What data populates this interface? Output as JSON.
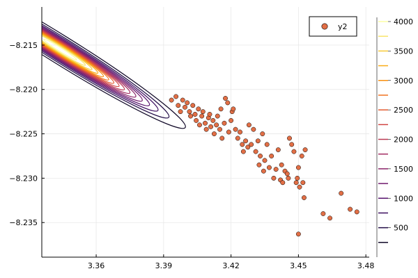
{
  "chart_data": {
    "type": "scatter",
    "title": "",
    "xlabel": "",
    "ylabel": "",
    "xlim": [
      3.3358,
      3.4815
    ],
    "ylim": [
      -8.2389,
      -8.2107
    ],
    "x_ticks": [
      3.36,
      3.39,
      3.42,
      3.45,
      3.48
    ],
    "x_tick_labels": [
      "3.36",
      "3.39",
      "3.42",
      "3.45",
      "3.48"
    ],
    "y_ticks": [
      -8.215,
      -8.22,
      -8.225,
      -8.23,
      -8.235
    ],
    "y_tick_labels": [
      "−8.215",
      "−8.220",
      "−8.225",
      "−8.230",
      "−8.235"
    ],
    "grid": true,
    "legend": {
      "position": "top-right",
      "entries": [
        "y2"
      ]
    },
    "colors": {
      "scatter": "#e26f46",
      "edge": "#000000",
      "grid": "#e8e8e8"
    },
    "series": [
      {
        "name": "y2",
        "type": "scatter",
        "points": [
          [
            3.3935,
            -8.2212
          ],
          [
            3.3955,
            -8.2208
          ],
          [
            3.3965,
            -8.2218
          ],
          [
            3.3975,
            -8.2225
          ],
          [
            3.3985,
            -8.2212
          ],
          [
            3.3995,
            -8.222
          ],
          [
            3.4005,
            -8.2215
          ],
          [
            3.4015,
            -8.2225
          ],
          [
            3.402,
            -8.223
          ],
          [
            3.403,
            -8.2218
          ],
          [
            3.404,
            -8.2228
          ],
          [
            3.4045,
            -8.2235
          ],
          [
            3.4055,
            -8.2222
          ],
          [
            3.406,
            -8.224
          ],
          [
            3.407,
            -8.223
          ],
          [
            3.4075,
            -8.2225
          ],
          [
            3.4085,
            -8.2238
          ],
          [
            3.409,
            -8.2245
          ],
          [
            3.41,
            -8.2232
          ],
          [
            3.4105,
            -8.2228
          ],
          [
            3.411,
            -8.2242
          ],
          [
            3.412,
            -8.2235
          ],
          [
            3.4125,
            -8.225
          ],
          [
            3.4135,
            -8.224
          ],
          [
            3.414,
            -8.223
          ],
          [
            3.415,
            -8.2245
          ],
          [
            3.4155,
            -8.2222
          ],
          [
            3.416,
            -8.2255
          ],
          [
            3.417,
            -8.2238
          ],
          [
            3.4175,
            -8.221
          ],
          [
            3.4185,
            -8.2215
          ],
          [
            3.419,
            -8.2248
          ],
          [
            3.42,
            -8.2235
          ],
          [
            3.4205,
            -8.2225
          ],
          [
            3.421,
            -8.2222
          ],
          [
            3.422,
            -8.2245
          ],
          [
            3.423,
            -8.2255
          ],
          [
            3.424,
            -8.2248
          ],
          [
            3.425,
            -8.2262
          ],
          [
            3.4255,
            -8.227
          ],
          [
            3.4265,
            -8.2258
          ],
          [
            3.4275,
            -8.2265
          ],
          [
            3.428,
            -8.224
          ],
          [
            3.429,
            -8.2262
          ],
          [
            3.43,
            -8.2245
          ],
          [
            3.431,
            -8.227
          ],
          [
            3.432,
            -8.2258
          ],
          [
            3.4325,
            -8.2285
          ],
          [
            3.433,
            -8.2275
          ],
          [
            3.434,
            -8.225
          ],
          [
            3.4345,
            -8.2292
          ],
          [
            3.435,
            -8.228
          ],
          [
            3.436,
            -8.2262
          ],
          [
            3.437,
            -8.2288
          ],
          [
            3.438,
            -8.2275
          ],
          [
            3.439,
            -8.23
          ],
          [
            3.44,
            -8.229
          ],
          [
            3.441,
            -8.2268
          ],
          [
            3.442,
            -8.2302
          ],
          [
            3.4425,
            -8.2285
          ],
          [
            3.443,
            -8.2305
          ],
          [
            3.444,
            -8.2292
          ],
          [
            3.445,
            -8.2295
          ],
          [
            3.4455,
            -8.23
          ],
          [
            3.446,
            -8.2255
          ],
          [
            3.447,
            -8.2262
          ],
          [
            3.448,
            -8.227
          ],
          [
            3.449,
            -8.2305
          ],
          [
            3.4495,
            -8.23
          ],
          [
            3.45,
            -8.2288
          ],
          [
            3.4505,
            -8.231
          ],
          [
            3.4515,
            -8.2275
          ],
          [
            3.452,
            -8.2305
          ],
          [
            3.4525,
            -8.2322
          ],
          [
            3.453,
            -8.2268
          ],
          [
            3.461,
            -8.234
          ],
          [
            3.464,
            -8.2345
          ],
          [
            3.469,
            -8.2317
          ],
          [
            3.473,
            -8.2335
          ],
          [
            3.476,
            -8.2338
          ],
          [
            3.45,
            -8.2363
          ]
        ]
      }
    ],
    "contour": {
      "center": [
        3.344,
        -8.2155
      ],
      "legend_title": "",
      "levels": [
        250,
        500,
        750,
        1000,
        1250,
        1500,
        1750,
        2000,
        2250,
        2500,
        2750,
        3000,
        3250,
        3500,
        3750,
        4000
      ],
      "colorbar_ticks": [
        500,
        1000,
        1500,
        2000,
        2500,
        3000,
        3500,
        4000
      ],
      "colorbar_tick_labels": [
        "500",
        "1000",
        "1500",
        "2000",
        "2500",
        "3000",
        "3500",
        "4000"
      ],
      "colors": [
        "#000004",
        "#1b0c41",
        "#4a0c6b",
        "#781c6d",
        "#a52c60",
        "#cf4446",
        "#ed6925",
        "#fb9b06",
        "#f7d13d",
        "#fcffa4"
      ]
    }
  }
}
